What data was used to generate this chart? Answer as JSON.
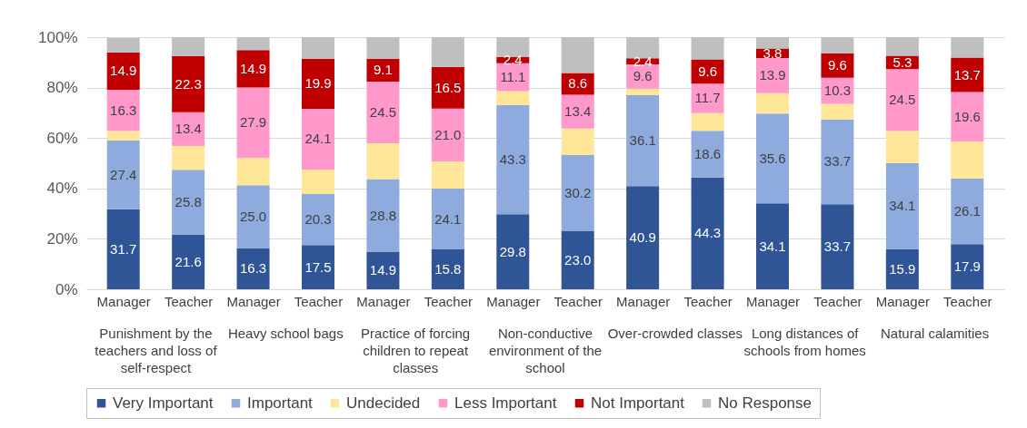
{
  "chart_data": {
    "type": "bar",
    "stacked": true,
    "categories": [
      "Manager",
      "Teacher",
      "Manager",
      "Teacher",
      "Manager",
      "Teacher",
      "Manager",
      "Teacher",
      "Manager",
      "Teacher",
      "Manager",
      "Teacher",
      "Manager",
      "Teacher"
    ],
    "annotations": [
      "Punishment by the teachers and loss of self-respect",
      "Heavy school bags",
      "Practice of forcing children to repeat classes",
      "Non-conductive environment of the school",
      "Over-crowded classes",
      "Long distances of schools from homes",
      "Natural calamities"
    ],
    "series": [
      {
        "name": "Very Important",
        "color": "#2f5597",
        "values": [
          31.7,
          21.6,
          16.3,
          17.5,
          14.9,
          15.8,
          29.8,
          23.0,
          40.9,
          44.3,
          34.1,
          33.7,
          15.9,
          17.9
        ],
        "value_labels": [
          "31.7",
          "21.6",
          "16.3",
          "17.5",
          "14.9",
          "15.8",
          "29.8",
          "23.0",
          "40.9",
          "44.3",
          "34.1",
          "33.7",
          "15.9",
          "17.9"
        ]
      },
      {
        "name": "Important",
        "color": "#8faadc",
        "values": [
          27.4,
          25.8,
          25.0,
          20.3,
          28.8,
          24.1,
          43.3,
          30.2,
          36.1,
          18.6,
          35.6,
          33.7,
          34.1,
          26.1
        ],
        "value_labels": [
          "27.4",
          "25.8",
          "25.0",
          "20.3",
          "28.8",
          "24.1",
          "43.3",
          "30.2",
          "36.1",
          "18.6",
          "35.6",
          "33.7",
          "34.1",
          "26.1"
        ]
      },
      {
        "name": "Undecided",
        "color": "#ffe699",
        "values": [
          3.7,
          9.4,
          10.8,
          9.7,
          14.2,
          10.8,
          5.5,
          10.6,
          2.6,
          7.0,
          8.1,
          6.2,
          12.8,
          14.6
        ]
      },
      {
        "name": "Less Important",
        "color": "#ff99cc",
        "values": [
          16.3,
          13.4,
          27.9,
          24.1,
          24.5,
          21.0,
          11.1,
          13.4,
          9.6,
          11.7,
          13.9,
          10.3,
          24.5,
          19.6
        ],
        "value_labels": [
          "16.3",
          "13.4",
          "27.9",
          "24.1",
          "24.5",
          "21.0",
          "11.1",
          "13.4",
          "9.6",
          "11.7",
          "13.9",
          "10.3",
          "24.5",
          "19.6"
        ]
      },
      {
        "name": "Not Important",
        "color": "#c00000",
        "values": [
          14.9,
          22.3,
          14.9,
          19.9,
          9.1,
          16.5,
          2.4,
          8.6,
          2.4,
          9.6,
          3.8,
          9.6,
          5.3,
          13.7
        ],
        "value_labels": [
          "14.9",
          "22.3",
          "14.9",
          "19.9",
          "9.1",
          "16.5",
          "2.4",
          "8.6",
          "2.4",
          "9.6",
          "3.8",
          "9.6",
          "5.3",
          "13.7"
        ]
      },
      {
        "name": "No Response",
        "color": "#bfbfbf",
        "values": [
          5.7,
          7.5,
          5.1,
          8.5,
          8.5,
          11.8,
          7.9,
          14.2,
          8.4,
          8.8,
          4.5,
          6.5,
          7.4,
          8.1
        ]
      }
    ],
    "ylim": [
      0,
      100
    ],
    "yticks": [
      {
        "value": 0,
        "label": "0%"
      },
      {
        "value": 20,
        "label": "20%"
      },
      {
        "value": 40,
        "label": "40%"
      },
      {
        "value": 60,
        "label": "60%"
      },
      {
        "value": 80,
        "label": "80%"
      },
      {
        "value": 100,
        "label": "100%"
      }
    ],
    "grid": "y",
    "legend": "bottom"
  }
}
